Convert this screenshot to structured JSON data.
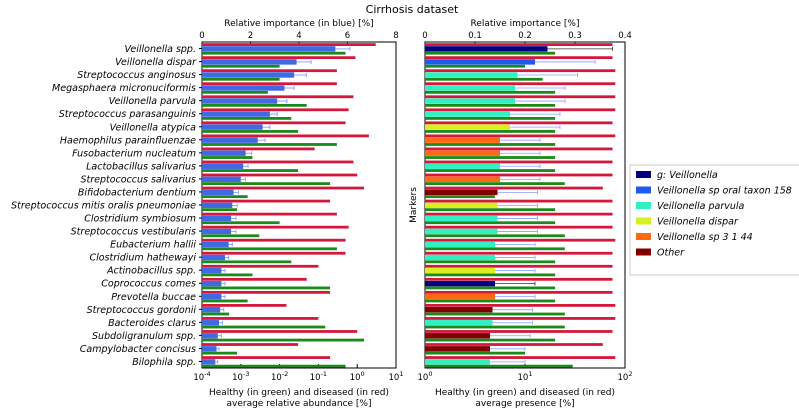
{
  "chart_data": {
    "type": "bar",
    "title": "Cirrhosis dataset",
    "left_panel": {
      "top_axis_label": "Relative importance (in blue) [%]",
      "top_ticks": [
        "0",
        "2",
        "4",
        "6",
        "8"
      ],
      "top_range": [
        0,
        8
      ],
      "bottom_axis_label_1": "Healthy (in green) and diseased (in red)",
      "bottom_axis_label_2": "average relative abundance [%]",
      "bottom_ticks": [
        {
          "base": "10",
          "exp": "-4",
          "value": -4
        },
        {
          "base": "10",
          "exp": "-3",
          "value": -3
        },
        {
          "base": "10",
          "exp": "-2",
          "value": -2
        },
        {
          "base": "10",
          "exp": "-1",
          "value": -1
        },
        {
          "base": "10",
          "exp": "0",
          "value": 0
        },
        {
          "base": "10",
          "exp": "1",
          "value": 1
        }
      ],
      "bottom_log10_range": [
        -4,
        1
      ],
      "categories": [
        "Veillonella spp.",
        "Veillonella dispar",
        "Streptococcus anginosus",
        "Megasphaera micronuciformis",
        "Veillonella parvula",
        "Streptococcus parasanguinis",
        "Veillonella atypica",
        "Haemophilus parainfluenzae",
        "Fusobacterium nucleatum",
        "Lactobacillus salivarius",
        "Streptococcus salivarius",
        "Bifidobacterium dentium",
        "Streptococcus mitis oralis pneumoniae",
        "Clostridium symbiosum",
        "Streptococcus vestibularis",
        "Eubacterium hallii",
        "Clostridium hathewayi",
        "Actinobacillus spp.",
        "Coprococcus comes",
        "Prevotella buccae",
        "Streptococcus gordonii",
        "Bacteroides clarus",
        "Subdoligranulum spp.",
        "Campylobacter concisus",
        "Bilophila spp."
      ],
      "series": [
        {
          "name": "Relative importance",
          "color": "#4169e1",
          "values": [
            5.5,
            3.9,
            3.8,
            3.4,
            3.1,
            2.8,
            2.5,
            2.3,
            1.8,
            1.7,
            1.6,
            1.3,
            1.25,
            1.2,
            1.2,
            1.1,
            0.95,
            0.8,
            0.8,
            0.8,
            0.75,
            0.7,
            0.65,
            0.6,
            0.55
          ],
          "errors": [
            0.6,
            0.6,
            0.5,
            0.4,
            0.4,
            0.3,
            0.3,
            0.3,
            0.25,
            0.2,
            0.2,
            0.2,
            0.2,
            0.2,
            0.2,
            0.15,
            0.15,
            0.15,
            0.15,
            0.15,
            0.15,
            0.15,
            0.15,
            0.1,
            0.1
          ]
        },
        {
          "name": "Healthy",
          "color": "#1a8a1a",
          "values": [
            0.5,
            0.01,
            0.01,
            0.005,
            0.05,
            0.02,
            0.03,
            0.3,
            0.002,
            0.03,
            0.2,
            0.0015,
            0.0008,
            0.01,
            0.003,
            0.3,
            0.02,
            0.002,
            0.2,
            0.0015,
            0.0005,
            0.15,
            1.5,
            0.0008,
            0.5
          ],
          "unit": "% (log scale)"
        },
        {
          "name": "Diseased",
          "color": "#d4183d",
          "values": [
            3.0,
            0.9,
            0.3,
            0.3,
            0.8,
            0.6,
            0.5,
            2.0,
            0.08,
            0.8,
            1.0,
            1.5,
            0.2,
            0.3,
            0.6,
            0.5,
            0.5,
            0.1,
            0.05,
            0.2,
            0.015,
            0.1,
            1.0,
            0.03,
            0.2
          ],
          "unit": "% (log scale)"
        }
      ]
    },
    "right_panel": {
      "top_axis_label": "Relative importance [%]",
      "top_ticks": [
        "0",
        "0.1",
        "0.2",
        "0.3",
        "0.4"
      ],
      "top_range": [
        0,
        0.4
      ],
      "ylabel": "Markers",
      "bottom_axis_label_1": "Healthy (in green) and diseased (in red)",
      "bottom_axis_label_2": "average presence [%]",
      "bottom_ticks": [
        {
          "base": "10",
          "exp": "0",
          "value": 0
        },
        {
          "base": "10",
          "exp": "1",
          "value": 1
        },
        {
          "base": "10",
          "exp": "2",
          "value": 2
        }
      ],
      "bottom_log10_range": [
        0,
        2
      ],
      "legend": {
        "position": "right",
        "entries": [
          {
            "label": "g: Veillonella",
            "color": "#000080"
          },
          {
            "label": "Veillonella sp oral taxon 158",
            "color": "#1f5af0"
          },
          {
            "label": "Veillonella parvula",
            "color": "#33f0c0"
          },
          {
            "label": "Veillonella dispar",
            "color": "#d8f020"
          },
          {
            "label": "Veillonella sp 3 1 44",
            "color": "#ff6a10"
          },
          {
            "label": "Other",
            "color": "#800000"
          }
        ]
      },
      "markers": [
        {
          "group": 0,
          "importance": 0.245,
          "error": 0.13,
          "healthy": 20,
          "diseased": 75
        },
        {
          "group": 1,
          "importance": 0.22,
          "error": 0.12,
          "healthy": 10,
          "diseased": 75
        },
        {
          "group": 2,
          "importance": 0.185,
          "error": 0.12,
          "healthy": 15,
          "diseased": 80
        },
        {
          "group": 2,
          "importance": 0.18,
          "error": 0.1,
          "healthy": 20,
          "diseased": 80
        },
        {
          "group": 2,
          "importance": 0.18,
          "error": 0.1,
          "healthy": 20,
          "diseased": 80
        },
        {
          "group": 2,
          "importance": 0.17,
          "error": 0.1,
          "healthy": 20,
          "diseased": 80
        },
        {
          "group": 3,
          "importance": 0.17,
          "error": 0.1,
          "healthy": 20,
          "diseased": 75
        },
        {
          "group": 4,
          "importance": 0.15,
          "error": 0.08,
          "healthy": 20,
          "diseased": 80
        },
        {
          "group": 4,
          "importance": 0.15,
          "error": 0.08,
          "healthy": 20,
          "diseased": 75
        },
        {
          "group": 2,
          "importance": 0.15,
          "error": 0.08,
          "healthy": 20,
          "diseased": 75
        },
        {
          "group": 4,
          "importance": 0.15,
          "error": 0.08,
          "healthy": 25,
          "diseased": 75
        },
        {
          "group": 5,
          "importance": 0.145,
          "error": 0.08,
          "healthy": 5,
          "diseased": 60
        },
        {
          "group": 3,
          "importance": 0.145,
          "error": 0.08,
          "healthy": 20,
          "diseased": 75
        },
        {
          "group": 2,
          "importance": 0.145,
          "error": 0.08,
          "healthy": 20,
          "diseased": 75
        },
        {
          "group": 2,
          "importance": 0.145,
          "error": 0.08,
          "healthy": 25,
          "diseased": 75
        },
        {
          "group": 2,
          "importance": 0.14,
          "error": 0.08,
          "healthy": 25,
          "diseased": 80
        },
        {
          "group": 2,
          "importance": 0.14,
          "error": 0.08,
          "healthy": 20,
          "diseased": 75
        },
        {
          "group": 3,
          "importance": 0.14,
          "error": 0.08,
          "healthy": 20,
          "diseased": 75
        },
        {
          "group": 0,
          "importance": 0.14,
          "error": 0.08,
          "healthy": 20,
          "diseased": 75
        },
        {
          "group": 4,
          "importance": 0.14,
          "error": 0.08,
          "healthy": 20,
          "diseased": 75
        },
        {
          "group": 5,
          "importance": 0.135,
          "error": 0.08,
          "healthy": 25,
          "diseased": 80
        },
        {
          "group": 2,
          "importance": 0.135,
          "error": 0.08,
          "healthy": 25,
          "diseased": 80
        },
        {
          "group": 5,
          "importance": 0.13,
          "error": 0.08,
          "healthy": 20,
          "diseased": 75
        },
        {
          "group": 5,
          "importance": 0.13,
          "error": 0.07,
          "healthy": 10,
          "diseased": 60
        },
        {
          "group": 2,
          "importance": 0.13,
          "error": 0.07,
          "healthy": 30,
          "diseased": 80
        }
      ]
    }
  }
}
